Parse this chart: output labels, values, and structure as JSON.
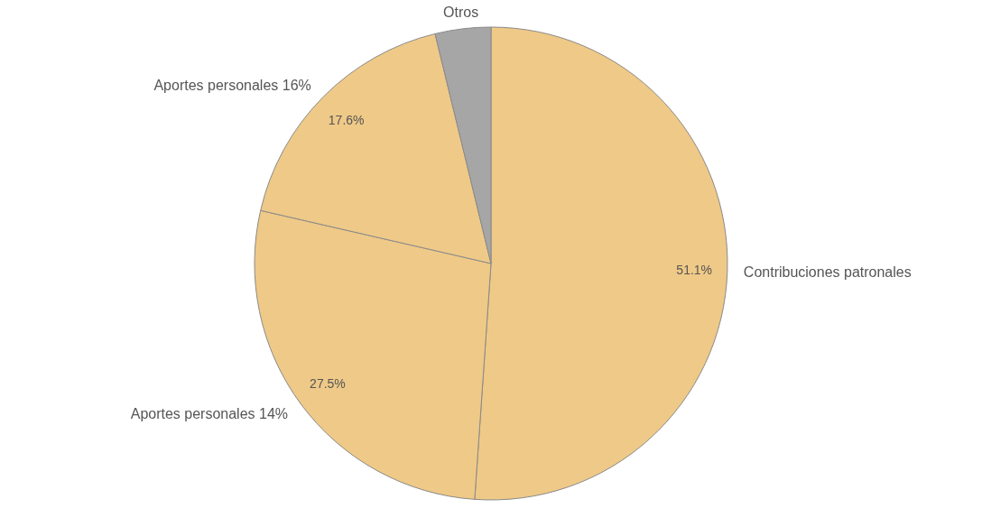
{
  "chart_data": {
    "type": "pie",
    "categories": [
      "Contribuciones patronales",
      "Aportes personales 14%",
      "Aportes personales 16%",
      "Otros"
    ],
    "values": [
      51.1,
      27.5,
      17.6,
      3.8
    ],
    "colors": [
      "#efc987",
      "#efc987",
      "#efc987",
      "#a6a6a6"
    ],
    "value_labels": [
      "51.1%",
      "27.5%",
      "17.6%",
      null
    ]
  }
}
